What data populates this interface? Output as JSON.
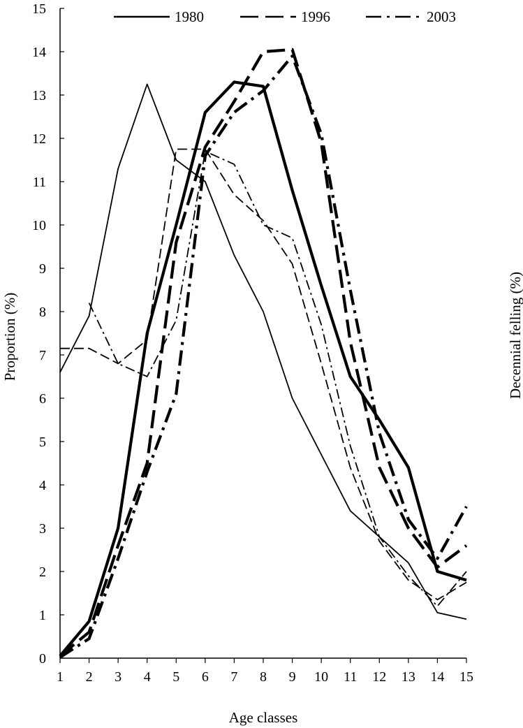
{
  "chart_data": {
    "type": "line",
    "title": "",
    "xlabel": "Age classes",
    "ylabel": "Proportion (%)",
    "y2label": "Decennial felling (%)",
    "x": [
      1,
      2,
      3,
      4,
      5,
      6,
      7,
      8,
      9,
      10,
      11,
      12,
      13,
      14,
      15
    ],
    "xlim": [
      1,
      15
    ],
    "ylim": [
      0,
      15
    ],
    "x_ticks": [
      "1",
      "2",
      "3",
      "4",
      "5",
      "6",
      "7",
      "8",
      "9",
      "10",
      "11",
      "12",
      "13",
      "14",
      "15"
    ],
    "y_ticks": [
      "0",
      "1",
      "2",
      "3",
      "4",
      "5",
      "6",
      "7",
      "8",
      "9",
      "10",
      "11",
      "12",
      "13",
      "14",
      "15"
    ],
    "grid": false,
    "legend": {
      "position": "top",
      "entries": [
        {
          "label": "1980",
          "style": "solid"
        },
        {
          "label": "1996",
          "style": "dashed"
        },
        {
          "label": "2003",
          "style": "dashdot"
        }
      ]
    },
    "series": [
      {
        "name": "1980",
        "style": "solid",
        "weight": "thin",
        "values": [
          6.6,
          7.9,
          11.3,
          13.25,
          11.5,
          11.0,
          9.3,
          8.0,
          6.0,
          4.7,
          3.4,
          2.8,
          2.2,
          1.05,
          0.9
        ]
      },
      {
        "name": "1996",
        "style": "dashed",
        "weight": "thin",
        "values": [
          7.15,
          7.15,
          6.8,
          7.35,
          11.75,
          11.75,
          10.7,
          10.1,
          9.1,
          6.8,
          4.4,
          2.7,
          1.8,
          1.35,
          1.75
        ]
      },
      {
        "name": "2003",
        "style": "dashdot",
        "weight": "thin",
        "values": [
          null,
          8.2,
          6.8,
          6.5,
          7.8,
          11.7,
          11.4,
          10.0,
          9.7,
          7.7,
          4.9,
          2.8,
          1.9,
          1.2,
          2.0
        ]
      },
      {
        "name": "1980",
        "style": "solid",
        "weight": "thick",
        "values": [
          0.05,
          0.85,
          3.0,
          7.5,
          10.0,
          12.6,
          13.3,
          13.2,
          10.8,
          8.6,
          6.5,
          5.5,
          4.4,
          2.0,
          1.8
        ]
      },
      {
        "name": "1996",
        "style": "dashed",
        "weight": "thick",
        "values": [
          0.05,
          0.6,
          2.6,
          4.5,
          9.6,
          11.8,
          12.85,
          14.0,
          14.05,
          11.9,
          7.3,
          4.4,
          3.0,
          2.1,
          2.6
        ]
      },
      {
        "name": "2003",
        "style": "dashdot",
        "weight": "thick",
        "values": [
          0.02,
          0.45,
          2.3,
          4.3,
          6.1,
          11.6,
          12.6,
          13.1,
          13.9,
          12.1,
          8.5,
          5.2,
          3.2,
          2.3,
          3.5
        ]
      }
    ]
  }
}
